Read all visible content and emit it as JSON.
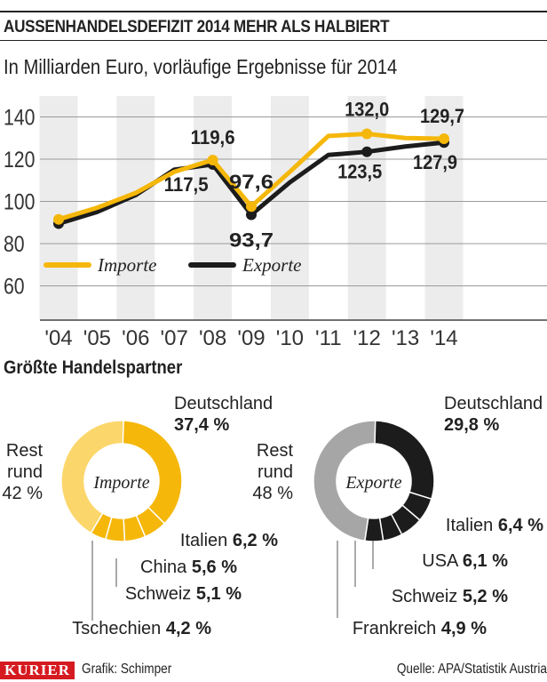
{
  "header": {
    "title": "AUSSENHANDELSDEFIZIT 2014 MEHR ALS HALBIERT",
    "subtitle": "In Milliarden Euro, vorläufige Ergebnisse für 2014"
  },
  "chart_data": [
    {
      "type": "line",
      "categories": [
        "'04",
        "'05",
        "'06",
        "'07",
        "'08",
        "'09",
        "'10",
        "'11",
        "'12",
        "'13",
        "'14"
      ],
      "yticks": [
        60,
        80,
        100,
        120,
        140
      ],
      "ylim": [
        44,
        150
      ],
      "grid": true,
      "legend": "left, inside lower area",
      "series": [
        {
          "name": "Importe",
          "color": "#f5b70a",
          "values": [
            91.5,
            97,
            104,
            114,
            119.6,
            97.6,
            114,
            131,
            132.0,
            130,
            129.7
          ]
        },
        {
          "name": "Exporte",
          "color": "#1c1c1c",
          "values": [
            89.5,
            95,
            103,
            115,
            117.5,
            93.7,
            109,
            122,
            123.5,
            126,
            127.9
          ]
        }
      ],
      "data_labels": [
        {
          "series": "Importe",
          "category": "'08",
          "text": "119,6"
        },
        {
          "series": "Exporte",
          "category": "'08",
          "text": "117,5"
        },
        {
          "series": "Importe",
          "category": "'09",
          "text": "97,6"
        },
        {
          "series": "Exporte",
          "category": "'09",
          "text": "93,7"
        },
        {
          "series": "Importe",
          "category": "'12",
          "text": "132,0"
        },
        {
          "series": "Exporte",
          "category": "'12",
          "text": "123,5"
        },
        {
          "series": "Importe",
          "category": "'14",
          "text": "129,7"
        },
        {
          "series": "Exporte",
          "category": "'14",
          "text": "127,9"
        }
      ]
    },
    {
      "type": "pie",
      "title": "Importe",
      "section_title": "Größte Handelspartner",
      "slices": [
        {
          "label": "Deutschland",
          "value": 37.4,
          "text": "37,4 %",
          "color": "#f5b70a"
        },
        {
          "label": "Italien",
          "value": 6.2,
          "text": "6,2 %",
          "color": "#f5b70a"
        },
        {
          "label": "China",
          "value": 5.6,
          "text": "5,6 %",
          "color": "#f5b70a"
        },
        {
          "label": "Schweiz",
          "value": 5.1,
          "text": "5,1 %",
          "color": "#f5b70a"
        },
        {
          "label": "Tschechien",
          "value": 4.2,
          "text": "4,2 %",
          "color": "#f5b70a"
        },
        {
          "label": "Rest rund",
          "value": 42,
          "text": "42 %",
          "color": "#fbd66a"
        }
      ]
    },
    {
      "type": "pie",
      "title": "Exporte",
      "slices": [
        {
          "label": "Deutschland",
          "value": 29.8,
          "text": "29,8 %",
          "color": "#1c1c1c"
        },
        {
          "label": "Italien",
          "value": 6.4,
          "text": "6,4 %",
          "color": "#1c1c1c"
        },
        {
          "label": "USA",
          "value": 6.1,
          "text": "6,1 %",
          "color": "#1c1c1c"
        },
        {
          "label": "Schweiz",
          "value": 5.2,
          "text": "5,2 %",
          "color": "#1c1c1c"
        },
        {
          "label": "Frankreich",
          "value": 4.9,
          "text": "4,9 %",
          "color": "#1c1c1c"
        },
        {
          "label": "Rest rund",
          "value": 48,
          "text": "48 %",
          "color": "#a6a6a6"
        }
      ]
    }
  ],
  "footer": {
    "brand": "KURIER",
    "credit": "Grafik: Schimper",
    "source": "Quelle: APA/Statistik Austria"
  }
}
